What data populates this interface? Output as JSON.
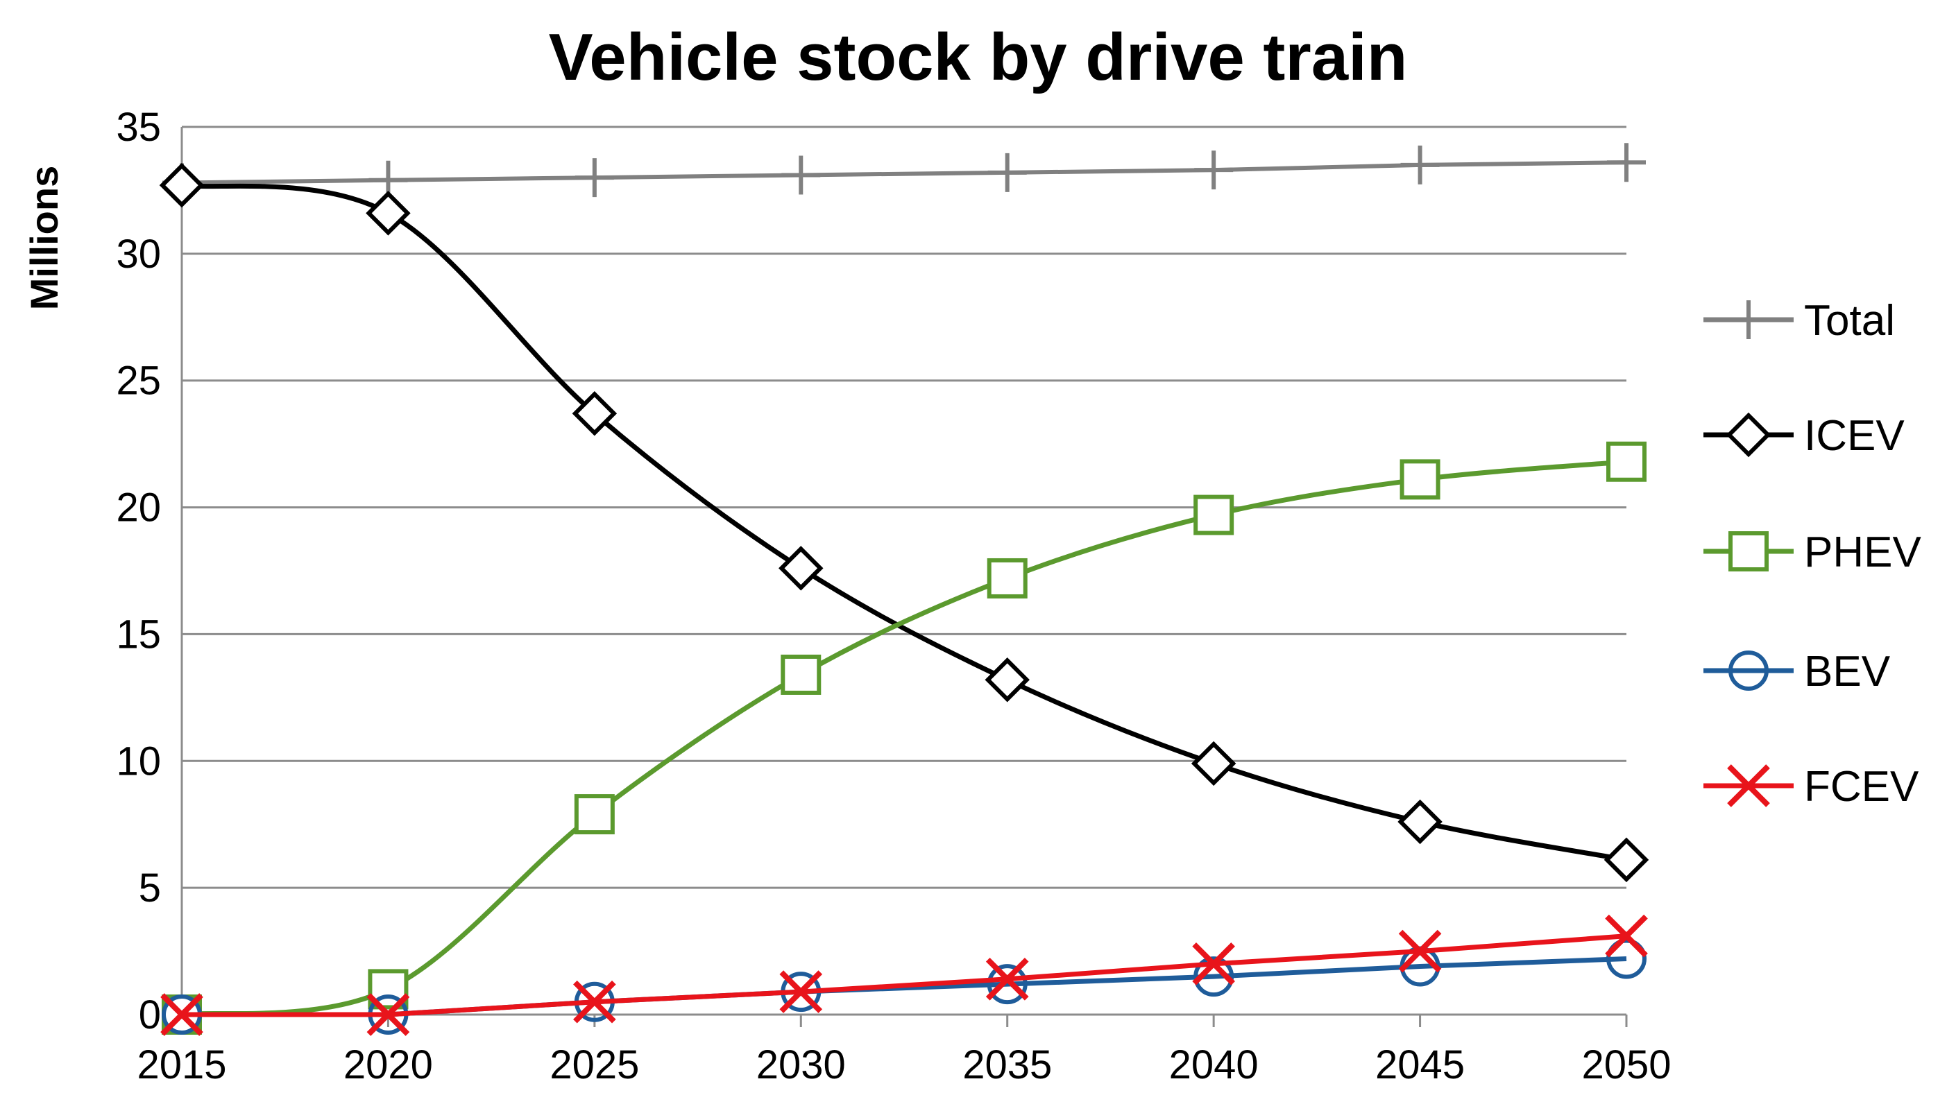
{
  "chart_data": {
    "type": "line",
    "title": "Vehicle stock by drive train",
    "xlabel": "",
    "ylabel": "Millions",
    "x": [
      "2015",
      "2020",
      "2025",
      "2030",
      "2035",
      "2040",
      "2045",
      "2050"
    ],
    "ylim": [
      0,
      35
    ],
    "yticks": [
      "0",
      "5",
      "10",
      "15",
      "20",
      "25",
      "30",
      "35"
    ],
    "grid": true,
    "legend_position": "right",
    "series": [
      {
        "name": "Total",
        "color": "#808080",
        "marker": "plus",
        "values": [
          32.8,
          32.9,
          33.0,
          33.1,
          33.2,
          33.3,
          33.5,
          33.6
        ]
      },
      {
        "name": "ICEV",
        "color": "#000000",
        "marker": "diamond",
        "values": [
          32.7,
          31.6,
          23.7,
          17.6,
          13.2,
          9.9,
          7.6,
          6.1
        ]
      },
      {
        "name": "PHEV",
        "color": "#5B9A2E",
        "marker": "square",
        "values": [
          0.0,
          1.0,
          7.9,
          13.4,
          17.2,
          19.7,
          21.1,
          21.8
        ]
      },
      {
        "name": "BEV",
        "color": "#1F5C9A",
        "marker": "circle",
        "values": [
          0.0,
          0.0,
          0.5,
          0.9,
          1.2,
          1.5,
          1.9,
          2.2
        ]
      },
      {
        "name": "FCEV",
        "color": "#E8141B",
        "marker": "x",
        "values": [
          0.0,
          0.0,
          0.5,
          0.9,
          1.4,
          2.0,
          2.5,
          3.1
        ]
      }
    ]
  }
}
